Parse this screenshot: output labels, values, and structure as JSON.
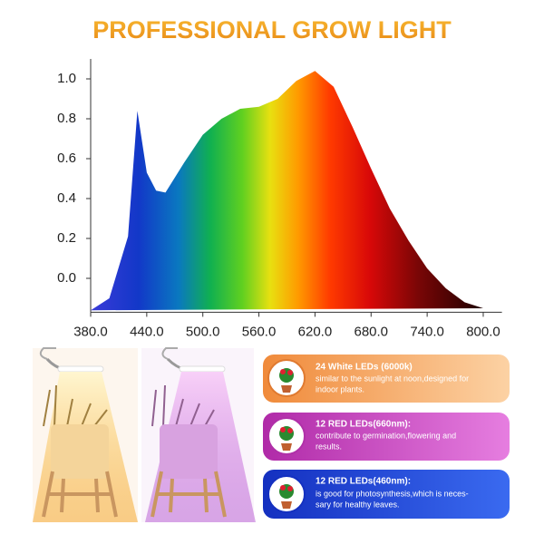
{
  "chart_data": {
    "type": "area",
    "title": "PROFESSIONAL GROW LIGHT",
    "x": [
      380,
      400,
      420,
      430,
      440,
      450,
      460,
      480,
      500,
      520,
      540,
      560,
      580,
      600,
      620,
      640,
      660,
      680,
      700,
      720,
      740,
      760,
      780,
      800
    ],
    "values": [
      -0.16,
      -0.1,
      0.21,
      0.84,
      0.53,
      0.44,
      0.43,
      0.58,
      0.72,
      0.8,
      0.85,
      0.86,
      0.9,
      0.99,
      1.04,
      0.96,
      0.76,
      0.55,
      0.35,
      0.19,
      0.05,
      -0.05,
      -0.12,
      -0.15
    ],
    "xlim": [
      380,
      820
    ],
    "xticks": [
      {
        "value": 380,
        "label": "380.0"
      },
      {
        "value": 440,
        "label": "440.0"
      },
      {
        "value": 500,
        "label": "500.0"
      },
      {
        "value": 560,
        "label": "560.0"
      },
      {
        "value": 620,
        "label": "620.0"
      },
      {
        "value": 680,
        "label": "680.0"
      },
      {
        "value": 740,
        "label": "740.0"
      },
      {
        "value": 800,
        "label": "800.0"
      }
    ],
    "ylim": [
      -0.17,
      1.1
    ],
    "yticks": [
      {
        "value": 0,
        "label": "0.0"
      },
      0.2,
      0.4,
      0.6,
      0.8,
      {
        "value": 1,
        "label": "1.0"
      }
    ],
    "grid": false
  },
  "cards": [
    {
      "title": "24 White LEDs  (6000k)",
      "lines": [
        "similar to the sunlight at noon,designed for",
        "indoor plants."
      ]
    },
    {
      "title": "12 RED LEDs(660nm):",
      "lines": [
        "contribute to germination,flowering and",
        "results."
      ]
    },
    {
      "title": "12 RED LEDs(460nm):",
      "lines": [
        "is good for photosynthesis,which is neces-",
        "sary for healthy leaves."
      ]
    }
  ]
}
